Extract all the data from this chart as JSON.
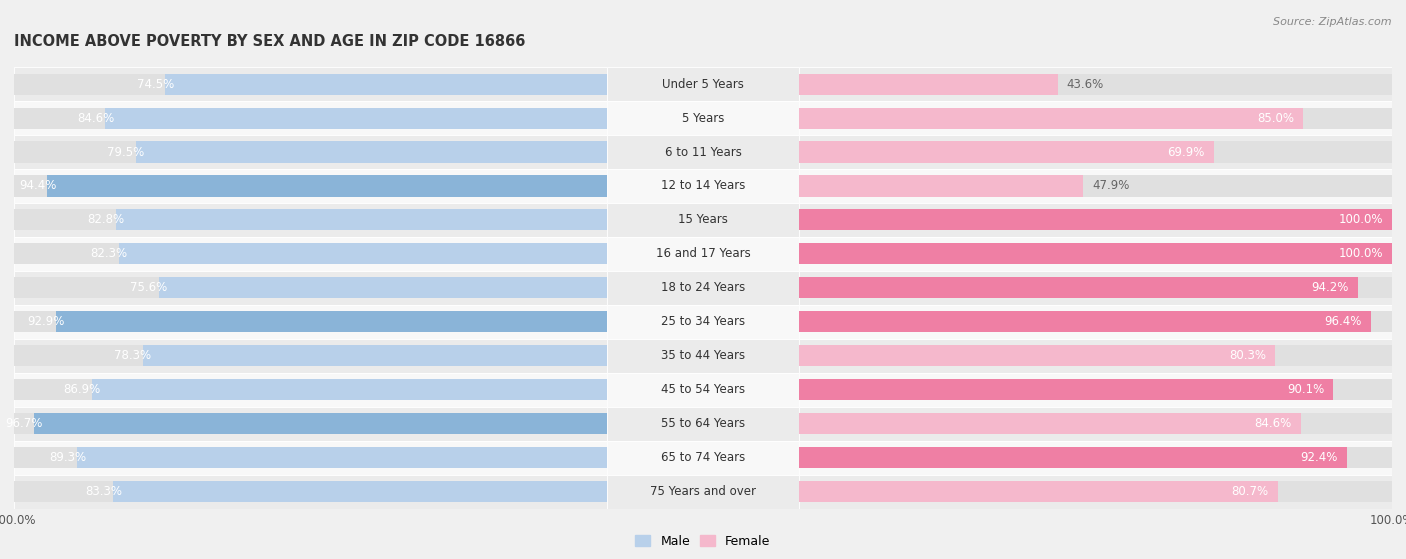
{
  "title": "INCOME ABOVE POVERTY BY SEX AND AGE IN ZIP CODE 16866",
  "source": "Source: ZipAtlas.com",
  "categories": [
    "Under 5 Years",
    "5 Years",
    "6 to 11 Years",
    "12 to 14 Years",
    "15 Years",
    "16 and 17 Years",
    "18 to 24 Years",
    "25 to 34 Years",
    "35 to 44 Years",
    "45 to 54 Years",
    "55 to 64 Years",
    "65 to 74 Years",
    "75 Years and over"
  ],
  "male_values": [
    74.5,
    84.6,
    79.5,
    94.4,
    82.8,
    82.3,
    75.6,
    92.9,
    78.3,
    86.9,
    96.7,
    89.3,
    83.3
  ],
  "female_values": [
    43.6,
    85.0,
    69.9,
    47.9,
    100.0,
    100.0,
    94.2,
    96.4,
    80.3,
    90.1,
    84.6,
    92.4,
    80.7
  ],
  "male_color_light": "#b8d0ea",
  "male_color_dark": "#8ab4d8",
  "female_color_light": "#f5b8cc",
  "female_color_dark": "#ef7fa4",
  "male_label": "Male",
  "female_label": "Female",
  "bg_color": "#f0f0f0",
  "row_bg_even": "#ebebeb",
  "row_bg_odd": "#f8f8f8",
  "track_color": "#e0e0e0",
  "title_fontsize": 10.5,
  "value_fontsize": 8.5,
  "cat_fontsize": 8.5,
  "legend_fontsize": 9,
  "tick_fontsize": 8.5
}
